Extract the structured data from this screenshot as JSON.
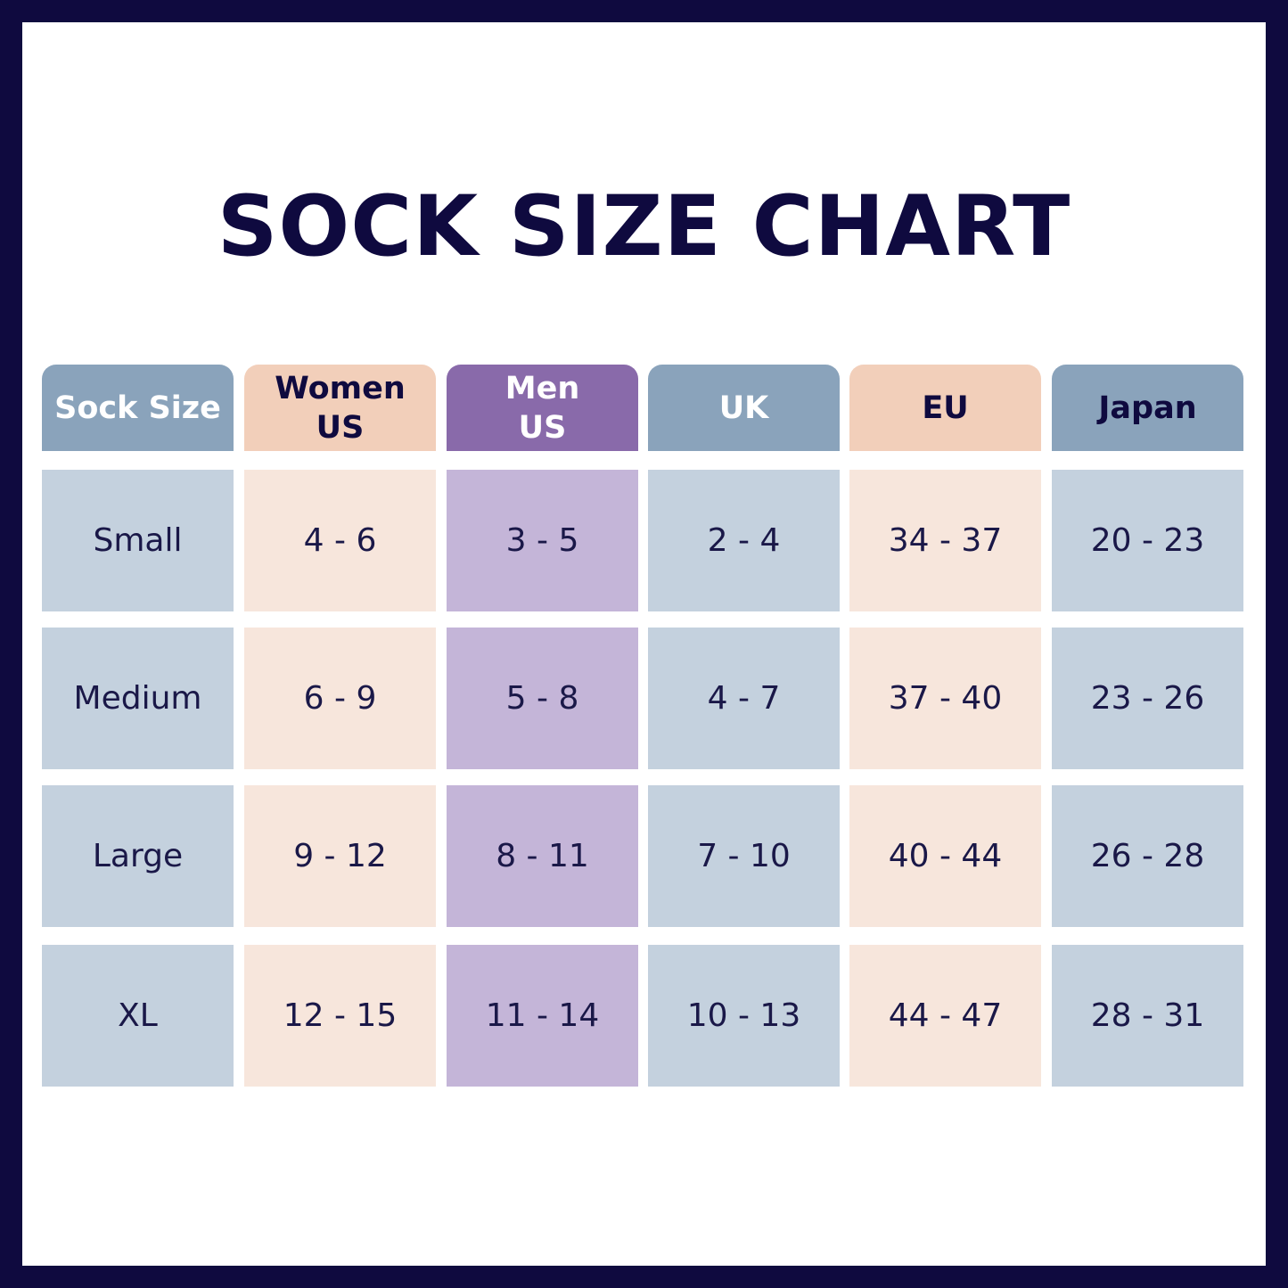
{
  "chart_data": {
    "type": "table",
    "title": "SOCK SIZE CHART",
    "columns": [
      {
        "key": "sock_size",
        "label_lines": [
          "Sock Size"
        ],
        "header_color": "#8aa3bb",
        "cell_color": "#c4d1de",
        "header_text_color": "#ffffff"
      },
      {
        "key": "women_us",
        "label_lines": [
          "Women",
          "US"
        ],
        "header_color": "#f2cfba",
        "cell_color": "#f7e6dc",
        "header_text_color": "#0f0a3f"
      },
      {
        "key": "men_us",
        "label_lines": [
          "Men",
          "US"
        ],
        "header_color": "#896aaa",
        "cell_color": "#c4b5d8",
        "header_text_color": "#ffffff"
      },
      {
        "key": "uk",
        "label_lines": [
          "UK"
        ],
        "header_color": "#8aa3bb",
        "cell_color": "#c4d1de",
        "header_text_color": "#ffffff"
      },
      {
        "key": "eu",
        "label_lines": [
          "EU"
        ],
        "header_color": "#f2cfba",
        "cell_color": "#f7e6dc",
        "header_text_color": "#0f0a3f"
      },
      {
        "key": "japan",
        "label_lines": [
          "Japan"
        ],
        "header_color": "#8aa3bb",
        "cell_color": "#c4d1de",
        "header_text_color": "#0f0a3f"
      }
    ],
    "rows": [
      [
        "Small",
        "4 - 6",
        "3 - 5",
        "2 - 4",
        "34 - 37",
        "20 - 23"
      ],
      [
        "Medium",
        "6 - 9",
        "5 - 8",
        "4 - 7",
        "37 - 40",
        "23 - 26"
      ],
      [
        "Large",
        "9 - 12",
        "8 - 11",
        "7 - 10",
        "40 - 44",
        "26 - 28"
      ],
      [
        "XL",
        "12 - 15",
        "11 - 14",
        "10 - 13",
        "44 - 47",
        "28 - 31"
      ]
    ]
  },
  "colors": {
    "frame": "#0f0a3f",
    "title": "#0f0a3f",
    "body_text": "#1a1848"
  }
}
